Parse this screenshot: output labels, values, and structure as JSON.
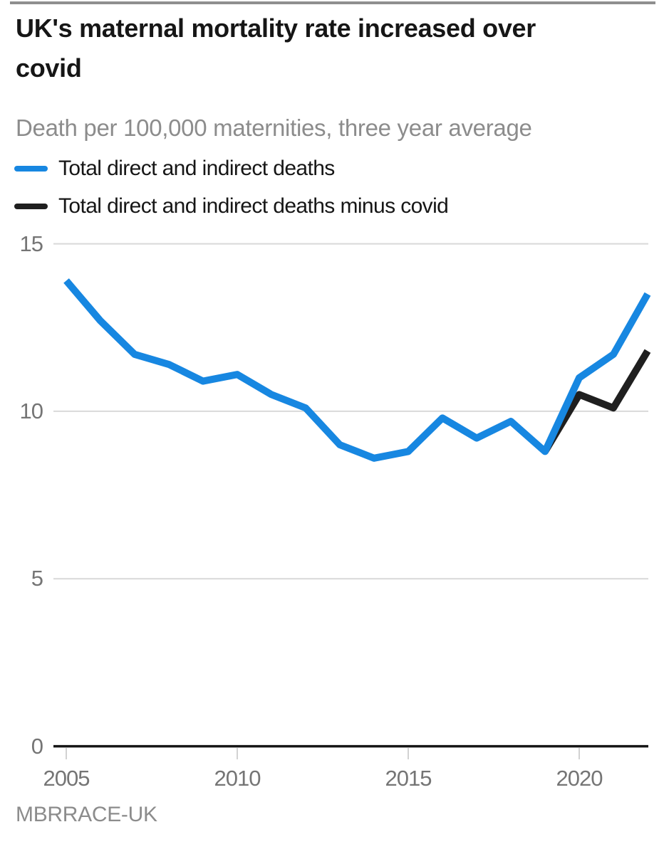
{
  "chart_data": {
    "type": "line",
    "title": "UK's maternal mortality rate increased over covid",
    "title_lines": [
      "UK's maternal mortality rate increased over",
      "covid"
    ],
    "subtitle": "Death per 100,000 maternities, three year average",
    "source": "MBRRACE-UK",
    "x": [
      2005,
      2006,
      2007,
      2008,
      2009,
      2010,
      2011,
      2012,
      2013,
      2014,
      2015,
      2016,
      2017,
      2018,
      2019,
      2020,
      2021,
      2022
    ],
    "series": [
      {
        "key": "total",
        "name": "Total direct and indirect deaths",
        "color": "#1787e1",
        "values": [
          13.9,
          12.7,
          11.7,
          11.4,
          10.9,
          11.1,
          10.5,
          10.1,
          9.0,
          8.6,
          8.8,
          9.8,
          9.2,
          9.7,
          8.8,
          11.0,
          11.7,
          13.5
        ]
      },
      {
        "key": "minus-covid",
        "name": "Total direct and indirect deaths minus covid",
        "color": "#1f1f1f",
        "values": [
          null,
          null,
          null,
          null,
          null,
          null,
          null,
          null,
          null,
          null,
          null,
          null,
          null,
          null,
          8.8,
          10.5,
          10.1,
          11.8
        ]
      }
    ],
    "xticks": [
      2005,
      2010,
      2015,
      2020
    ],
    "yticks": [
      0,
      5,
      10,
      15
    ],
    "ylim": [
      0,
      15
    ],
    "xlim": [
      2005,
      2022
    ],
    "grid": "horizontal-only",
    "legend_position": "top-left",
    "axis_color": "#161616",
    "gridline_color": "#d9d9d9"
  }
}
